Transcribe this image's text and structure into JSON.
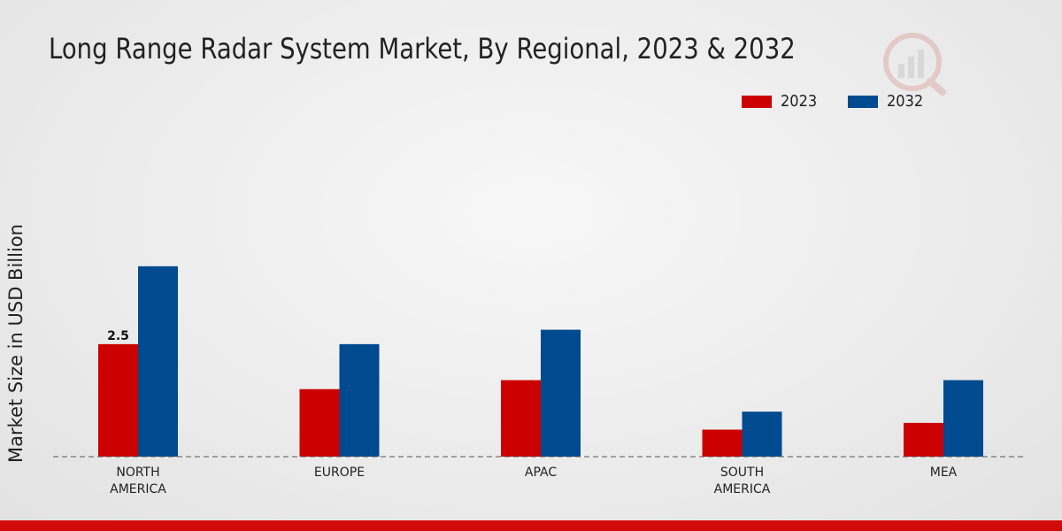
{
  "chart_data": {
    "type": "bar",
    "title": "Long Range Radar System Market, By Regional, 2023 & 2032",
    "xlabel": "",
    "ylabel": "Market Size in USD Billion",
    "categories": [
      [
        "NORTH",
        "AMERICA"
      ],
      [
        "EUROPE"
      ],
      [
        "APAC"
      ],
      [
        "SOUTH",
        "AMERICA"
      ],
      [
        "MEA"
      ]
    ],
    "series": [
      {
        "name": "2023",
        "color": "#cc0000",
        "values": [
          2.5,
          1.5,
          1.7,
          0.6,
          0.75
        ]
      },
      {
        "name": "2032",
        "color": "#004a8f",
        "values": [
          4.23,
          2.5,
          2.82,
          1.0,
          1.7
        ]
      }
    ],
    "data_labels": [
      {
        "series": 0,
        "index": 0,
        "text": "2.5"
      }
    ],
    "ylim": [
      0,
      7
    ],
    "grid": false,
    "legend_position": "top-right"
  }
}
